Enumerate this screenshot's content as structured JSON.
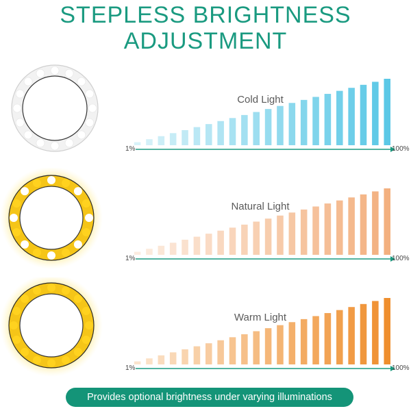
{
  "title": {
    "line1": "STEPLESS BRIGHTNESS",
    "line2": "ADJUSTMENT"
  },
  "accent_color": "#1a9a80",
  "modes": [
    {
      "label": "Cold Light",
      "min_label": "1%",
      "max_label": "100%",
      "bar_color": "#5bc8e6",
      "ring": "cold-white-ring-light"
    },
    {
      "label": "Natural Light",
      "min_label": "1%",
      "max_label": "100%",
      "bar_color": "#f3b07f",
      "ring": "natural-ring-light"
    },
    {
      "label": "Warm Light",
      "min_label": "1%",
      "max_label": "100%",
      "bar_color": "#ef8f2e",
      "ring": "warm-ring-light"
    }
  ],
  "footer": {
    "text": "Provides optional brightness under varying illuminations",
    "color": "#149478"
  }
}
